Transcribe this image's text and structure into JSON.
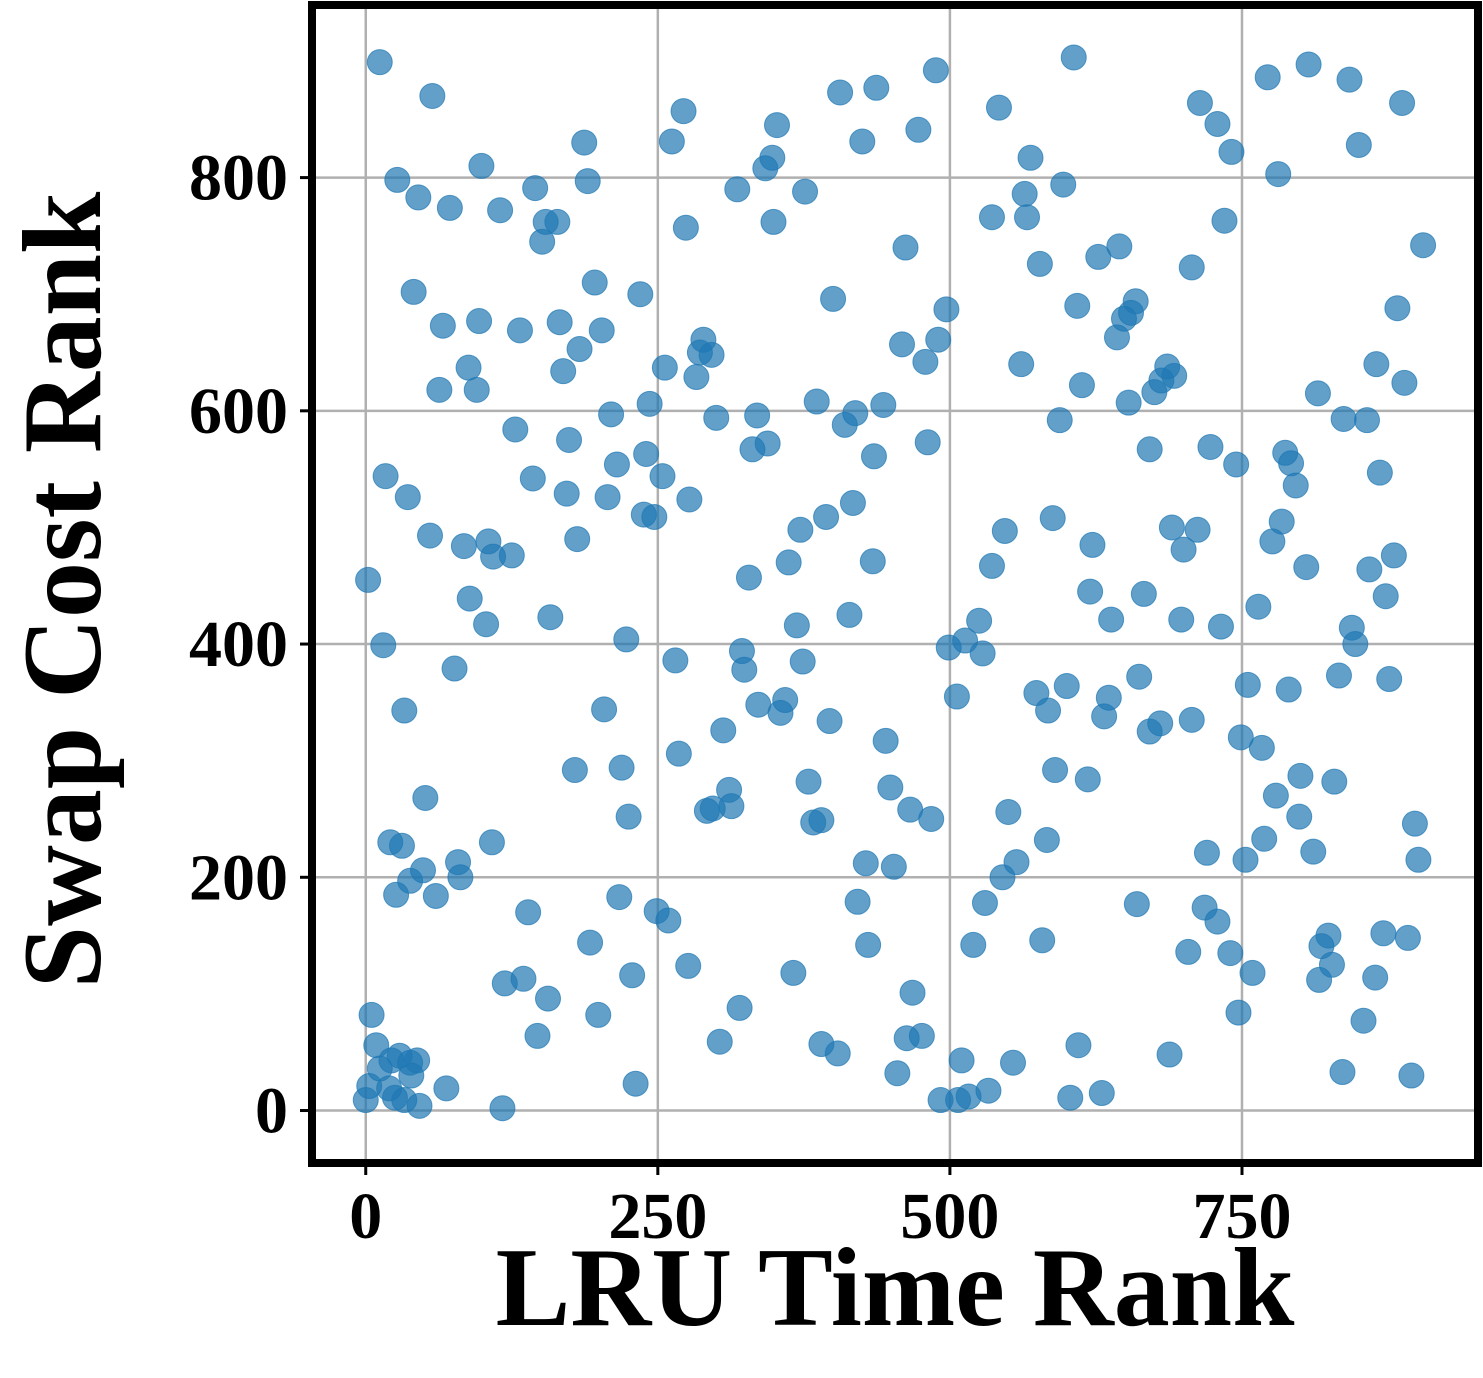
{
  "chart_data": {
    "type": "scatter",
    "x_label": "LRU Time Rank",
    "y_label": "Swap Cost Rank",
    "color": "#1f77b4",
    "grid": true,
    "xlim": [
      -46,
      952
    ],
    "ylim": [
      -45,
      948
    ],
    "xticks": [
      0,
      250,
      500,
      750
    ],
    "yticks": [
      0,
      200,
      400,
      600,
      800
    ],
    "x": [
      12,
      57,
      2,
      17,
      15,
      27,
      45,
      41,
      36,
      55,
      72,
      66,
      63,
      88,
      95,
      97,
      99,
      115,
      84,
      105,
      109,
      125,
      89,
      103,
      76,
      33,
      51,
      21,
      31,
      26,
      38,
      49,
      60,
      79,
      81,
      108,
      5,
      9,
      3,
      0,
      12,
      22,
      29,
      38,
      44,
      39,
      25,
      33,
      46,
      69,
      20,
      117,
      119,
      135,
      139,
      156,
      147,
      192,
      199,
      217,
      228,
      231,
      249,
      259,
      276,
      303,
      320,
      179,
      204,
      219,
      225,
      223,
      268,
      265,
      306,
      292,
      297,
      311,
      313,
      322,
      324,
      328,
      336,
      355,
      359,
      362,
      369,
      372,
      374,
      379,
      383,
      390,
      366,
      390,
      404,
      397,
      394,
      414,
      417,
      434,
      428,
      421,
      430,
      445,
      449,
      452,
      455,
      466,
      484,
      468,
      463,
      476,
      492,
      507,
      510,
      516,
      533,
      554,
      506,
      499,
      513,
      525,
      528,
      520,
      530,
      545,
      557,
      550,
      536,
      547,
      583,
      579,
      574,
      584,
      590,
      600,
      618,
      603,
      610,
      630,
      622,
      620,
      638,
      632,
      636,
      588,
      666,
      662,
      660,
      671,
      680,
      688,
      704,
      707,
      698,
      700,
      690,
      712,
      720,
      718,
      729,
      740,
      732,
      747,
      753,
      755,
      749,
      759,
      764,
      767,
      769,
      776,
      784,
      779,
      790,
      800,
      799,
      805,
      811,
      787,
      792,
      796,
      816,
      818,
      824,
      827,
      829,
      833,
      836,
      844,
      847,
      854,
      859,
      864,
      871,
      873,
      876,
      880,
      892,
      895,
      898,
      901,
      905,
      889,
      883,
      865,
      857,
      837,
      868,
      815,
      887,
      850,
      842,
      807,
      781,
      772,
      735,
      745,
      723,
      741,
      729,
      714,
      707,
      692,
      681,
      675,
      671,
      686,
      659,
      655,
      649,
      643,
      653,
      613,
      609,
      627,
      645,
      606,
      597,
      594,
      561,
      577,
      566,
      564,
      569,
      536,
      542,
      497,
      490,
      479,
      481,
      459,
      462,
      473,
      488,
      437,
      425,
      406,
      400,
      419,
      410,
      443,
      435,
      386,
      376,
      352,
      348,
      342,
      349,
      318,
      274,
      272,
      262,
      335,
      331,
      344,
      300,
      277,
      286,
      289,
      296,
      283,
      256,
      243,
      240,
      254,
      238,
      247,
      235,
      210,
      215,
      207,
      202,
      196,
      190,
      187,
      183,
      166,
      169,
      174,
      172,
      181,
      158,
      143,
      128,
      132,
      151,
      154,
      164,
      145
    ],
    "y": [
      899,
      870,
      455,
      544,
      399,
      798,
      783,
      702,
      526,
      493,
      774,
      673,
      618,
      637,
      618,
      677,
      810,
      772,
      484,
      488,
      475,
      476,
      439,
      417,
      379,
      343,
      268,
      230,
      227,
      185,
      197,
      206,
      184,
      213,
      200,
      230,
      82,
      56,
      21,
      9,
      36,
      43,
      47,
      41,
      43,
      30,
      11,
      9,
      4,
      19,
      19,
      2,
      109,
      113,
      170,
      96,
      64,
      144,
      82,
      183,
      116,
      23,
      171,
      163,
      124,
      59,
      88,
      292,
      344,
      294,
      252,
      404,
      306,
      386,
      326,
      257,
      259,
      275,
      261,
      394,
      378,
      457,
      348,
      341,
      352,
      470,
      416,
      498,
      385,
      282,
      247,
      249,
      118,
      57,
      49,
      334,
      509,
      425,
      521,
      471,
      212,
      179,
      142,
      317,
      277,
      209,
      32,
      258,
      250,
      101,
      62,
      64,
      9,
      9,
      43,
      12,
      17,
      41,
      355,
      397,
      403,
      420,
      392,
      142,
      178,
      200,
      213,
      256,
      467,
      497,
      232,
      146,
      358,
      343,
      292,
      364,
      284,
      11,
      56,
      15,
      485,
      445,
      421,
      338,
      354,
      508,
      443,
      372,
      177,
      325,
      332,
      48,
      136,
      335,
      421,
      481,
      500,
      498,
      221,
      174,
      162,
      135,
      415,
      84,
      215,
      365,
      320,
      118,
      432,
      311,
      233,
      488,
      505,
      270,
      361,
      287,
      252,
      466,
      222,
      564,
      555,
      536,
      112,
      141,
      150,
      125,
      282,
      373,
      33,
      414,
      400,
      77,
      464,
      114,
      152,
      441,
      370,
      476,
      148,
      30,
      246,
      215,
      742,
      624,
      688,
      640,
      592,
      593,
      547,
      615,
      864,
      828,
      884,
      897,
      803,
      886,
      763,
      554,
      569,
      822,
      846,
      864,
      723,
      630,
      626,
      616,
      567,
      638,
      694,
      684,
      679,
      663,
      607,
      622,
      690,
      732,
      741,
      903,
      794,
      592,
      640,
      726,
      766,
      786,
      817,
      766,
      860,
      687,
      661,
      642,
      573,
      657,
      740,
      841,
      892,
      877,
      831,
      873,
      696,
      598,
      588,
      605,
      561,
      608,
      788,
      845,
      817,
      808,
      762,
      790,
      757,
      857,
      831,
      596,
      567,
      572,
      594,
      524,
      650,
      661,
      648,
      629,
      637,
      606,
      563,
      544,
      511,
      509,
      700,
      597,
      554,
      526,
      669,
      710,
      797,
      830,
      653,
      676,
      634,
      575,
      529,
      490,
      423,
      542,
      584,
      669,
      745,
      762,
      762,
      791
    ]
  }
}
